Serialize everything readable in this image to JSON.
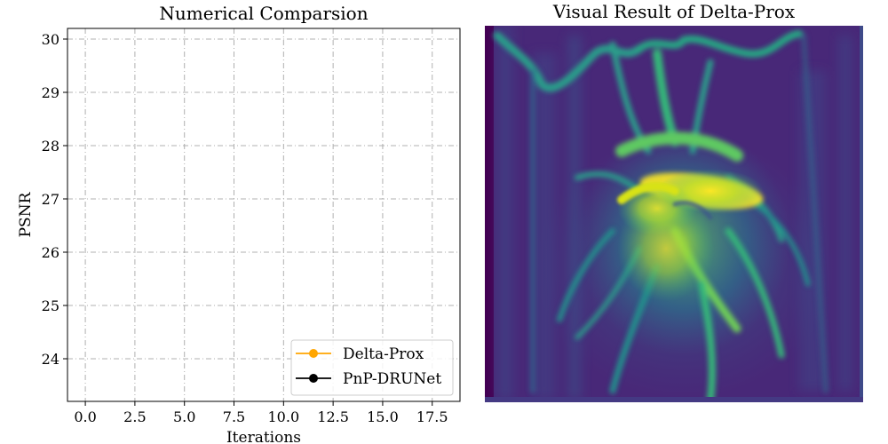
{
  "chart_data": [
    {
      "type": "line",
      "title": "Numerical Comparsion",
      "xlabel": "Iterations",
      "ylabel": "PSNR",
      "xlim": [
        -0.9,
        18.9
      ],
      "ylim": [
        23.2,
        30.2
      ],
      "xticks": [
        "0.0",
        "2.5",
        "5.0",
        "7.5",
        "10.0",
        "12.5",
        "15.0",
        "17.5"
      ],
      "xtick_values": [
        0,
        2.5,
        5,
        7.5,
        10,
        12.5,
        15,
        17.5
      ],
      "yticks": [
        "24",
        "25",
        "26",
        "27",
        "28",
        "29",
        "30"
      ],
      "ytick_values": [
        24,
        25,
        26,
        27,
        28,
        29,
        30
      ],
      "grid": true,
      "legend_position": "lower-right",
      "series": [
        {
          "name": "Delta-Prox",
          "color": "#ffa500",
          "marker": "circle",
          "x": [],
          "y": []
        },
        {
          "name": "PnP-DRUNet",
          "color": "#000000",
          "marker": "circle",
          "x": [],
          "y": []
        }
      ]
    },
    {
      "type": "image",
      "title": "Visual Result of Delta-Prox",
      "colormap": "viridis"
    }
  ]
}
